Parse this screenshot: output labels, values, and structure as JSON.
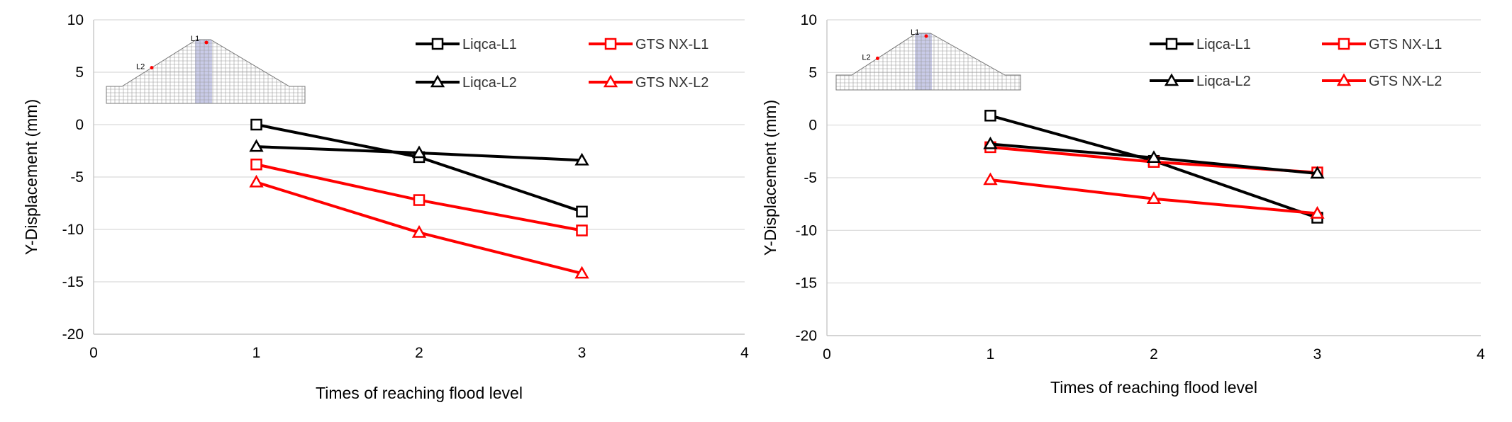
{
  "chart_data": [
    {
      "type": "line",
      "xlabel": "Times of reaching flood level",
      "ylabel": "Y-Displacement (mm)",
      "xlim": [
        0,
        4
      ],
      "ylim": [
        -20,
        10
      ],
      "xticks": [
        "0",
        "1",
        "2",
        "3",
        "4"
      ],
      "yticks": [
        "10",
        "5",
        "0",
        "-5",
        "-10",
        "-15",
        "-20"
      ],
      "grid": "horizontal",
      "legend_placement": "top-right",
      "inset_labels": [
        "L1",
        "L2"
      ],
      "series": [
        {
          "name": "Liqca-L1",
          "color": "#000000",
          "marker": "square",
          "x": [
            1,
            2,
            3
          ],
          "y": [
            0,
            -3.1,
            -8.3
          ]
        },
        {
          "name": "GTS NX-L1",
          "color": "#ff0000",
          "marker": "square",
          "x": [
            1,
            2,
            3
          ],
          "y": [
            -3.8,
            -7.2,
            -10.1
          ]
        },
        {
          "name": "Liqca-L2",
          "color": "#000000",
          "marker": "triangle",
          "x": [
            1,
            2,
            3
          ],
          "y": [
            -2.1,
            -2.7,
            -3.4
          ]
        },
        {
          "name": "GTS NX-L2",
          "color": "#ff0000",
          "marker": "triangle",
          "x": [
            1,
            2,
            3
          ],
          "y": [
            -5.5,
            -10.3,
            -14.2
          ]
        }
      ]
    },
    {
      "type": "line",
      "xlabel": "Times of reaching flood level",
      "ylabel": "Y-Displacement (mm)",
      "xlim": [
        0,
        4
      ],
      "ylim": [
        -20,
        10
      ],
      "xticks": [
        "0",
        "1",
        "2",
        "3",
        "4"
      ],
      "yticks": [
        "10",
        "5",
        "0",
        "-5",
        "-10",
        "-15",
        "-20"
      ],
      "grid": "horizontal",
      "legend_placement": "top-right",
      "inset_labels": [
        "L1",
        "L2"
      ],
      "series": [
        {
          "name": "Liqca-L1",
          "color": "#000000",
          "marker": "square",
          "x": [
            1,
            2,
            3
          ],
          "y": [
            0.9,
            -3.4,
            -8.8
          ]
        },
        {
          "name": "GTS NX-L1",
          "color": "#ff0000",
          "marker": "square",
          "x": [
            1,
            2,
            3
          ],
          "y": [
            -2.1,
            -3.5,
            -4.5
          ]
        },
        {
          "name": "Liqca-L2",
          "color": "#000000",
          "marker": "triangle",
          "x": [
            1,
            2,
            3
          ],
          "y": [
            -1.8,
            -3.1,
            -4.6
          ]
        },
        {
          "name": "GTS NX-L2",
          "color": "#ff0000",
          "marker": "triangle",
          "x": [
            1,
            2,
            3
          ],
          "y": [
            -5.2,
            -7.0,
            -8.4
          ]
        }
      ]
    }
  ]
}
